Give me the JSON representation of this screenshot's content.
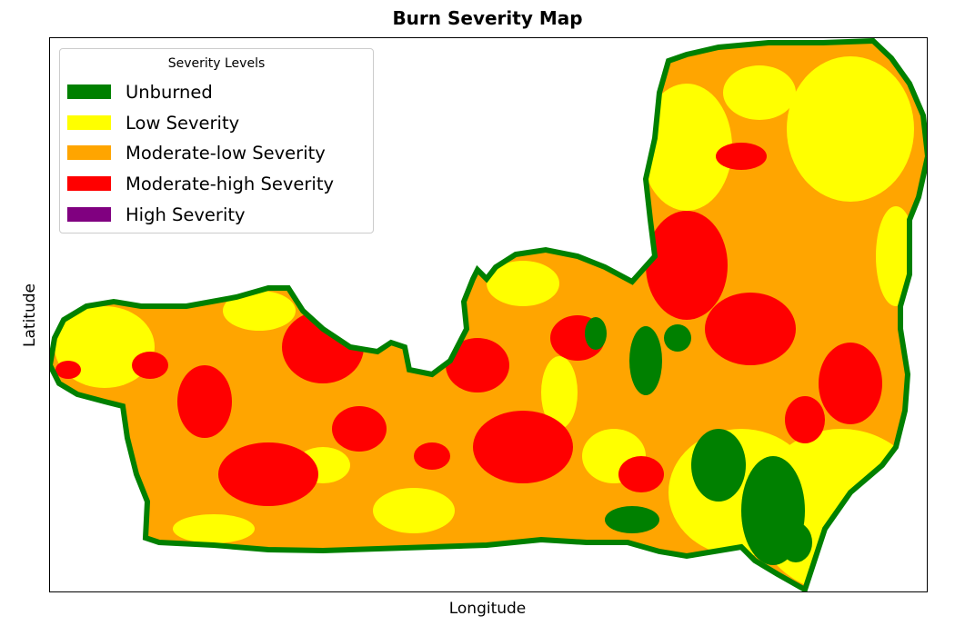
{
  "title": "Burn Severity Map",
  "xlabel": "Longitude",
  "ylabel": "Latitude",
  "legend": {
    "title": "Severity Levels",
    "items": [
      {
        "label": "Unburned",
        "color": "#008000"
      },
      {
        "label": "Low Severity",
        "color": "#ffff00"
      },
      {
        "label": "Moderate-low Severity",
        "color": "#ffa500"
      },
      {
        "label": "Moderate-high Severity",
        "color": "#ff0000"
      },
      {
        "label": "High Severity",
        "color": "#800080"
      }
    ]
  }
}
